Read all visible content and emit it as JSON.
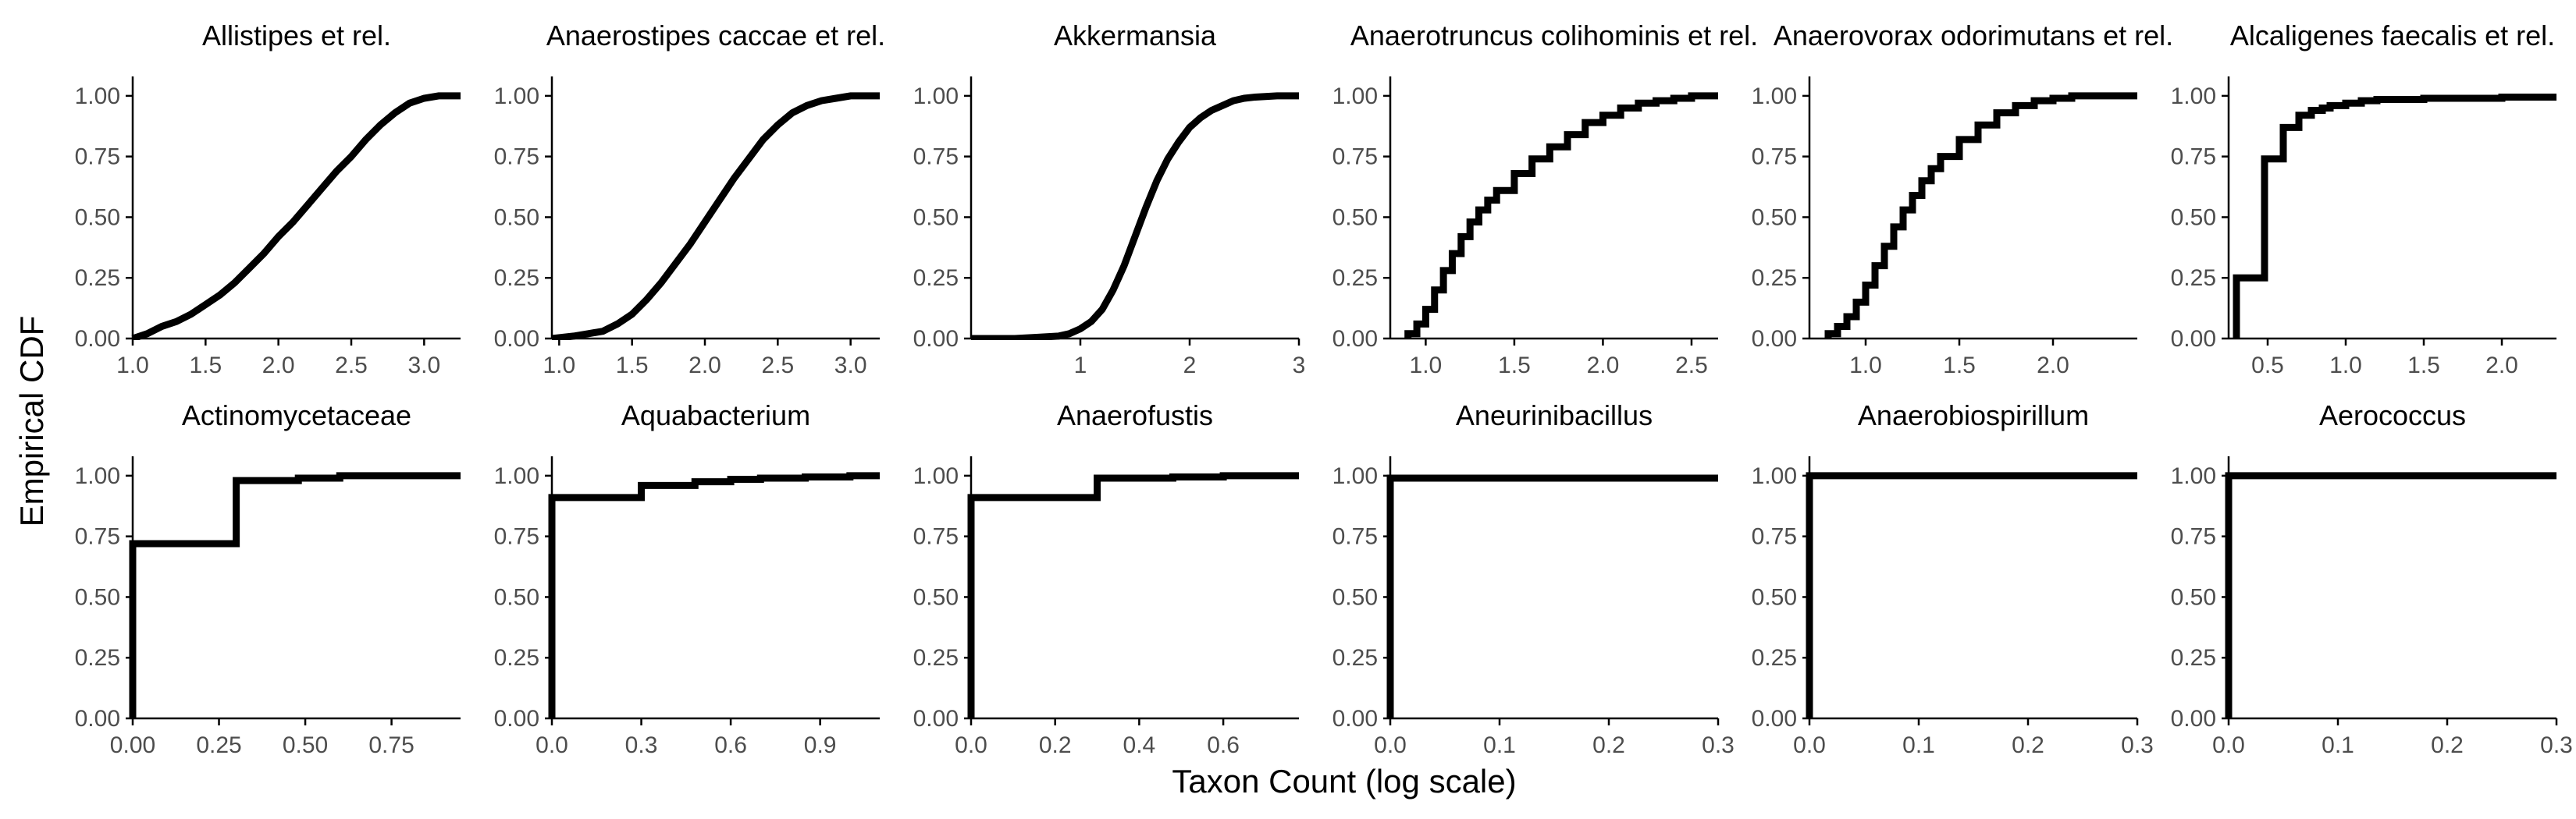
{
  "xlabel": "Taxon Count (log scale)",
  "ylabel": "Empirical CDF",
  "line_color": "#000000",
  "chart_data": [
    {
      "type": "line",
      "title": "Allistipes et rel.",
      "xlim": [
        1.0,
        3.25
      ],
      "ylim": [
        0,
        1.08
      ],
      "xticks": [
        1.0,
        1.5,
        2.0,
        2.5,
        3.0
      ],
      "xtick_labels": [
        "1.0",
        "1.5",
        "2.0",
        "2.5",
        "3.0"
      ],
      "yticks": [
        0,
        0.25,
        0.5,
        0.75,
        1.0
      ],
      "ytick_labels": [
        "0.00",
        "0.25",
        "0.50",
        "0.75",
        "1.00"
      ],
      "step": false,
      "x": [
        1.0,
        1.1,
        1.2,
        1.3,
        1.4,
        1.5,
        1.6,
        1.7,
        1.8,
        1.9,
        2.0,
        2.1,
        2.2,
        2.3,
        2.4,
        2.5,
        2.6,
        2.7,
        2.8,
        2.9,
        3.0,
        3.1,
        3.2
      ],
      "y": [
        0.0,
        0.02,
        0.05,
        0.07,
        0.1,
        0.14,
        0.18,
        0.23,
        0.29,
        0.35,
        0.42,
        0.48,
        0.55,
        0.62,
        0.69,
        0.75,
        0.82,
        0.88,
        0.93,
        0.97,
        0.99,
        1.0,
        1.0
      ]
    },
    {
      "type": "line",
      "title": "Anaerostipes caccae et rel.",
      "xlim": [
        0.95,
        3.2
      ],
      "ylim": [
        0,
        1.08
      ],
      "xticks": [
        1.0,
        1.5,
        2.0,
        2.5,
        3.0
      ],
      "xtick_labels": [
        "1.0",
        "1.5",
        "2.0",
        "2.5",
        "3.0"
      ],
      "yticks": [
        0,
        0.25,
        0.5,
        0.75,
        1.0
      ],
      "ytick_labels": [
        "0.00",
        "0.25",
        "0.50",
        "0.75",
        "1.00"
      ],
      "step": false,
      "x": [
        0.95,
        1.1,
        1.2,
        1.3,
        1.4,
        1.5,
        1.6,
        1.7,
        1.8,
        1.9,
        2.0,
        2.1,
        2.2,
        2.3,
        2.4,
        2.5,
        2.6,
        2.7,
        2.8,
        2.9,
        3.0,
        3.1,
        3.2
      ],
      "y": [
        0.0,
        0.01,
        0.02,
        0.03,
        0.06,
        0.1,
        0.16,
        0.23,
        0.31,
        0.39,
        0.48,
        0.57,
        0.66,
        0.74,
        0.82,
        0.88,
        0.93,
        0.96,
        0.98,
        0.99,
        1.0,
        1.0,
        1.0
      ]
    },
    {
      "type": "line",
      "title": "Akkermansia",
      "xlim": [
        0.0,
        3.0
      ],
      "ylim": [
        0,
        1.08
      ],
      "xticks": [
        1,
        2,
        3
      ],
      "xtick_labels": [
        "1",
        "2",
        "3"
      ],
      "yticks": [
        0,
        0.25,
        0.5,
        0.75,
        1.0
      ],
      "ytick_labels": [
        "0.00",
        "0.25",
        "0.50",
        "0.75",
        "1.00"
      ],
      "step": false,
      "x": [
        0.0,
        0.4,
        0.6,
        0.8,
        0.9,
        1.0,
        1.1,
        1.2,
        1.3,
        1.4,
        1.5,
        1.6,
        1.7,
        1.8,
        1.9,
        2.0,
        2.1,
        2.2,
        2.3,
        2.4,
        2.5,
        2.6,
        2.8,
        3.0
      ],
      "y": [
        0.0,
        0.0,
        0.005,
        0.01,
        0.02,
        0.04,
        0.07,
        0.12,
        0.2,
        0.3,
        0.42,
        0.54,
        0.65,
        0.74,
        0.81,
        0.87,
        0.91,
        0.94,
        0.96,
        0.98,
        0.99,
        0.995,
        1.0,
        1.0
      ]
    },
    {
      "type": "line",
      "title": "Anaerotruncus colihominis et rel.",
      "xlim": [
        0.8,
        2.65
      ],
      "ylim": [
        0,
        1.08
      ],
      "xticks": [
        1.0,
        1.5,
        2.0,
        2.5
      ],
      "xtick_labels": [
        "1.0",
        "1.5",
        "2.0",
        "2.5"
      ],
      "yticks": [
        0,
        0.25,
        0.5,
        0.75,
        1.0
      ],
      "ytick_labels": [
        "0.00",
        "0.25",
        "0.50",
        "0.75",
        "1.00"
      ],
      "step": true,
      "x": [
        0.9,
        0.95,
        1.0,
        1.05,
        1.1,
        1.15,
        1.2,
        1.25,
        1.3,
        1.35,
        1.4,
        1.5,
        1.6,
        1.7,
        1.8,
        1.9,
        2.0,
        2.1,
        2.2,
        2.3,
        2.4,
        2.5,
        2.65
      ],
      "y": [
        0.02,
        0.06,
        0.12,
        0.2,
        0.28,
        0.35,
        0.42,
        0.48,
        0.53,
        0.57,
        0.61,
        0.68,
        0.74,
        0.79,
        0.84,
        0.89,
        0.92,
        0.95,
        0.97,
        0.98,
        0.99,
        1.0,
        1.0
      ]
    },
    {
      "type": "line",
      "title": "Anaerovorax odorimutans et rel.",
      "xlim": [
        0.7,
        2.45
      ],
      "ylim": [
        0,
        1.08
      ],
      "xticks": [
        1.0,
        1.5,
        2.0
      ],
      "xtick_labels": [
        "1.0",
        "1.5",
        "2.0"
      ],
      "yticks": [
        0,
        0.25,
        0.5,
        0.75,
        1.0
      ],
      "ytick_labels": [
        "0.00",
        "0.25",
        "0.50",
        "0.75",
        "1.00"
      ],
      "step": true,
      "x": [
        0.8,
        0.85,
        0.9,
        0.95,
        1.0,
        1.05,
        1.1,
        1.15,
        1.2,
        1.25,
        1.3,
        1.35,
        1.4,
        1.5,
        1.6,
        1.7,
        1.8,
        1.9,
        2.0,
        2.1,
        2.2,
        2.45
      ],
      "y": [
        0.02,
        0.05,
        0.09,
        0.15,
        0.22,
        0.3,
        0.38,
        0.46,
        0.53,
        0.59,
        0.65,
        0.7,
        0.75,
        0.82,
        0.88,
        0.93,
        0.96,
        0.98,
        0.99,
        1.0,
        1.0,
        1.0
      ]
    },
    {
      "type": "line",
      "title": "Alcaligenes faecalis et rel.",
      "xlim": [
        0.25,
        2.35
      ],
      "ylim": [
        0,
        1.08
      ],
      "xticks": [
        0.5,
        1.0,
        1.5,
        2.0
      ],
      "xtick_labels": [
        "0.5",
        "1.0",
        "1.5",
        "2.0"
      ],
      "yticks": [
        0,
        0.25,
        0.5,
        0.75,
        1.0
      ],
      "ytick_labels": [
        "0.00",
        "0.25",
        "0.50",
        "0.75",
        "1.00"
      ],
      "step": true,
      "x": [
        0.3,
        0.48,
        0.6,
        0.7,
        0.78,
        0.85,
        0.9,
        1.0,
        1.1,
        1.2,
        1.5,
        2.0,
        2.35
      ],
      "y": [
        0.25,
        0.74,
        0.87,
        0.92,
        0.94,
        0.95,
        0.96,
        0.97,
        0.98,
        0.985,
        0.99,
        0.995,
        1.0
      ]
    },
    {
      "type": "line",
      "title": "Actinomycetaceae",
      "xlim": [
        0.0,
        0.95
      ],
      "ylim": [
        0,
        1.08
      ],
      "xticks": [
        0.0,
        0.25,
        0.5,
        0.75
      ],
      "xtick_labels": [
        "0.00",
        "0.25",
        "0.50",
        "0.75"
      ],
      "yticks": [
        0,
        0.25,
        0.5,
        0.75,
        1.0
      ],
      "ytick_labels": [
        "0.00",
        "0.25",
        "0.50",
        "0.75",
        "1.00"
      ],
      "step": true,
      "x": [
        0.0,
        0.3,
        0.48,
        0.6,
        0.95
      ],
      "y": [
        0.72,
        0.98,
        0.99,
        1.0,
        1.0
      ]
    },
    {
      "type": "line",
      "title": "Aquabacterium",
      "xlim": [
        0.0,
        1.1
      ],
      "ylim": [
        0,
        1.08
      ],
      "xticks": [
        0.0,
        0.3,
        0.6,
        0.9
      ],
      "xtick_labels": [
        "0.0",
        "0.3",
        "0.6",
        "0.9"
      ],
      "yticks": [
        0,
        0.25,
        0.5,
        0.75,
        1.0
      ],
      "ytick_labels": [
        "0.00",
        "0.25",
        "0.50",
        "0.75",
        "1.00"
      ],
      "step": true,
      "x": [
        0.0,
        0.3,
        0.48,
        0.6,
        0.7,
        0.85,
        1.0,
        1.1
      ],
      "y": [
        0.91,
        0.96,
        0.975,
        0.985,
        0.99,
        0.995,
        1.0,
        1.0
      ]
    },
    {
      "type": "line",
      "title": "Anaerofustis",
      "xlim": [
        0.0,
        0.78
      ],
      "ylim": [
        0,
        1.08
      ],
      "xticks": [
        0.0,
        0.2,
        0.4,
        0.6
      ],
      "xtick_labels": [
        "0.0",
        "0.2",
        "0.4",
        "0.6"
      ],
      "yticks": [
        0,
        0.25,
        0.5,
        0.75,
        1.0
      ],
      "ytick_labels": [
        "0.00",
        "0.25",
        "0.50",
        "0.75",
        "1.00"
      ],
      "step": true,
      "x": [
        0.0,
        0.3,
        0.48,
        0.6,
        0.78
      ],
      "y": [
        0.91,
        0.99,
        0.995,
        1.0,
        1.0
      ]
    },
    {
      "type": "line",
      "title": "Aneurinibacillus",
      "xlim": [
        0.0,
        0.3
      ],
      "ylim": [
        0,
        1.08
      ],
      "xticks": [
        0.0,
        0.1,
        0.2,
        0.3
      ],
      "xtick_labels": [
        "0.0",
        "0.1",
        "0.2",
        "0.3"
      ],
      "yticks": [
        0,
        0.25,
        0.5,
        0.75,
        1.0
      ],
      "ytick_labels": [
        "0.00",
        "0.25",
        "0.50",
        "0.75",
        "1.00"
      ],
      "step": true,
      "x": [
        0.0,
        0.3
      ],
      "y": [
        0.99,
        0.99
      ]
    },
    {
      "type": "line",
      "title": "Anaerobiospirillum",
      "xlim": [
        0.0,
        0.3
      ],
      "ylim": [
        0,
        1.08
      ],
      "xticks": [
        0.0,
        0.1,
        0.2,
        0.3
      ],
      "xtick_labels": [
        "0.0",
        "0.1",
        "0.2",
        "0.3"
      ],
      "yticks": [
        0,
        0.25,
        0.5,
        0.75,
        1.0
      ],
      "ytick_labels": [
        "0.00",
        "0.25",
        "0.50",
        "0.75",
        "1.00"
      ],
      "step": true,
      "x": [
        0.0,
        0.3
      ],
      "y": [
        1.0,
        1.0
      ]
    },
    {
      "type": "line",
      "title": "Aerococcus",
      "xlim": [
        0.0,
        0.3
      ],
      "ylim": [
        0,
        1.08
      ],
      "xticks": [
        0.0,
        0.1,
        0.2,
        0.3
      ],
      "xtick_labels": [
        "0.0",
        "0.1",
        "0.2",
        "0.3"
      ],
      "yticks": [
        0,
        0.25,
        0.5,
        0.75,
        1.0
      ],
      "ytick_labels": [
        "0.00",
        "0.25",
        "0.50",
        "0.75",
        "1.00"
      ],
      "step": true,
      "x": [
        0.0,
        0.3
      ],
      "y": [
        1.0,
        1.0
      ]
    }
  ]
}
